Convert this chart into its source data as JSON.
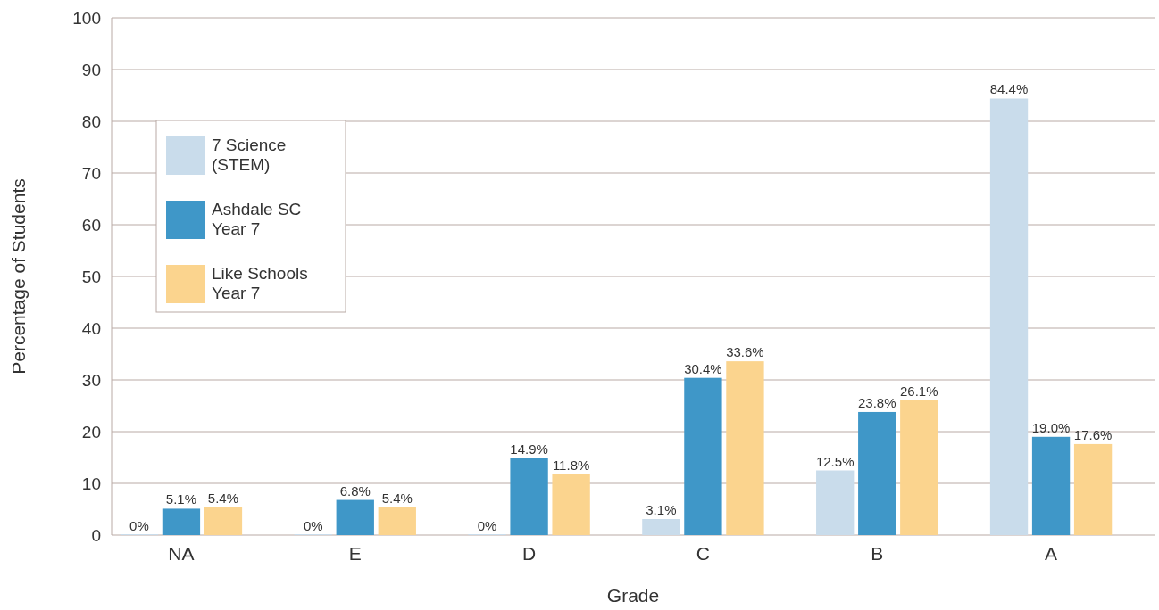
{
  "chart_data": {
    "type": "bar",
    "xlabel": "Grade",
    "ylabel": "Percentage of Students",
    "categories": [
      "NA",
      "E",
      "D",
      "C",
      "B",
      "A"
    ],
    "series": [
      {
        "name": "7 Science (STEM)",
        "color": "#c9dceb",
        "values": [
          0,
          0,
          0,
          3.1,
          12.5,
          84.4
        ],
        "value_labels": [
          "0%",
          "0%",
          "0%",
          "3.1%",
          "12.5%",
          "84.4%"
        ]
      },
      {
        "name": "Ashdale SC Year 7",
        "color": "#3f97c8",
        "values": [
          5.1,
          6.8,
          14.9,
          30.4,
          23.8,
          19.0
        ],
        "value_labels": [
          "5.1%",
          "6.8%",
          "14.9%",
          "30.4%",
          "23.8%",
          "19.0%"
        ]
      },
      {
        "name": "Like Schools Year 7",
        "color": "#fbd48e",
        "values": [
          5.4,
          5.4,
          11.8,
          33.6,
          26.1,
          17.6
        ],
        "value_labels": [
          "5.4%",
          "5.4%",
          "11.8%",
          "33.6%",
          "26.1%",
          "17.6%"
        ]
      }
    ],
    "ylim": [
      0,
      100
    ],
    "yticks": [
      0,
      10,
      20,
      30,
      40,
      50,
      60,
      70,
      80,
      90,
      100
    ],
    "grid": "y",
    "legend": "top left"
  }
}
